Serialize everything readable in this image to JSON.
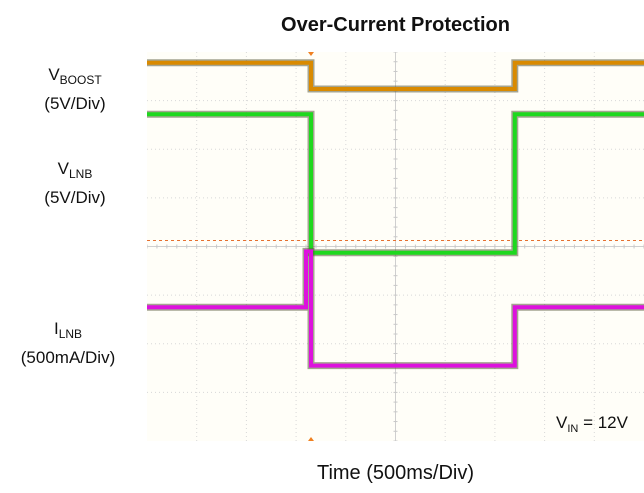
{
  "chart_data": {
    "type": "line",
    "title": "Over-Current Protection",
    "xlabel": "Time (500ms/Div)",
    "x_divisions": 10,
    "y_divisions": 8,
    "grid": true,
    "series": [
      {
        "name_main": "V",
        "name_sub": "BOOST",
        "scale": "(5V/Div)",
        "color": "#d98a00",
        "x": [
          0,
          3.3,
          3.3,
          7.4,
          7.4,
          10
        ],
        "y": [
          3.78,
          3.78,
          3.24,
          3.24,
          3.78,
          3.78
        ]
      },
      {
        "name_main": "V",
        "name_sub": "LNB",
        "scale": "(5V/Div)",
        "color": "#1ed81e",
        "x": [
          0,
          3.3,
          3.3,
          7.4,
          7.4,
          10
        ],
        "y": [
          2.72,
          2.72,
          -0.13,
          -0.13,
          2.72,
          2.72
        ]
      },
      {
        "name_main": "I",
        "name_sub": "LNB",
        "scale": "(500mA/Div)",
        "color": "#dd11dd",
        "x": [
          0,
          3.2,
          3.2,
          3.3,
          3.3,
          7.4,
          7.4,
          10
        ],
        "y": [
          -1.25,
          -1.25,
          -0.1,
          -0.1,
          -2.45,
          -2.45,
          -1.25,
          -1.25
        ]
      }
    ],
    "annotation": {
      "main": "V",
      "sub": "IN",
      "text": " = 12V"
    }
  }
}
